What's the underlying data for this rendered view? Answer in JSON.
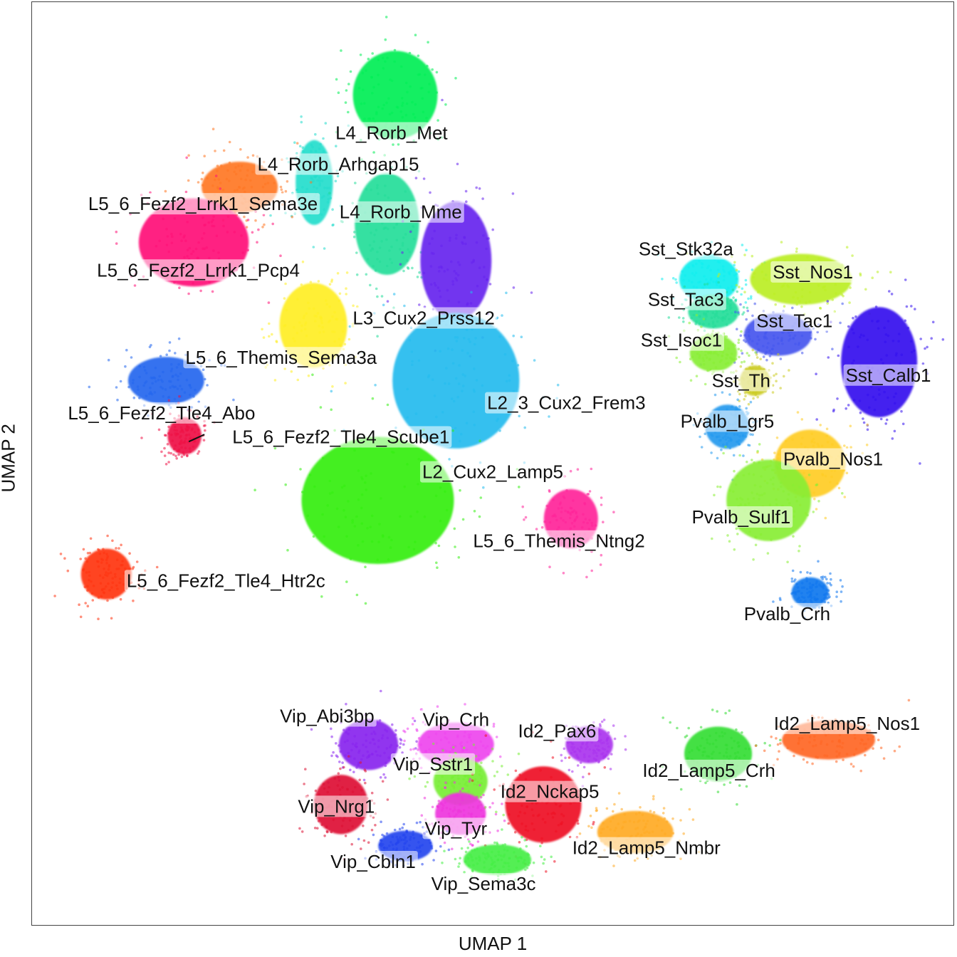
{
  "chart_data": {
    "type": "scatter",
    "title": "",
    "xlabel": "UMAP 1",
    "ylabel": "UMAP 2",
    "xlim": [
      0,
      100
    ],
    "ylim": [
      0,
      100
    ],
    "grid": false,
    "legend": "none",
    "clusters": [
      {
        "name": "L4_Rorb_Met",
        "color": "#00ee55",
        "cx": 39.4,
        "cy": 90.0,
        "rx": 5.0,
        "ry": 5.2,
        "lx": 39.0,
        "ly": 85.9
      },
      {
        "name": "L4_Rorb_Arhgap15",
        "color": "#22ddcc",
        "cx": 30.6,
        "cy": 80.5,
        "rx": 2.2,
        "ry": 5.0,
        "lx": 33.2,
        "ly": 82.5
      },
      {
        "name": "L5_6_Fezf2_Lrrk1_Sema3e",
        "color": "#ff7722",
        "cx": 22.5,
        "cy": 80.0,
        "rx": 4.5,
        "ry": 3.0,
        "lx": 18.5,
        "ly": 78.2
      },
      {
        "name": "L4_Rorb_Mme",
        "color": "#22dd99",
        "cx": 38.5,
        "cy": 76.0,
        "rx": 3.8,
        "ry": 6.0,
        "lx": 40.0,
        "ly": 77.3
      },
      {
        "name": "L3_Cux2_Prss12",
        "color": "#6622ee",
        "cx": 46.0,
        "cy": 72.0,
        "rx": 4.2,
        "ry": 7.0,
        "lx": 42.5,
        "ly": 65.8
      },
      {
        "name": "L5_6_Fezf2_Lrrk1_Pcp4",
        "color": "#ff1177",
        "cx": 17.5,
        "cy": 74.0,
        "rx": 6.5,
        "ry": 5.2,
        "lx": 18.0,
        "ly": 71.0
      },
      {
        "name": "L2_3_Cux2_Frem3",
        "color": "#22bbee",
        "cx": 46.0,
        "cy": 59.0,
        "rx": 7.5,
        "ry": 8.0,
        "lx": 58.0,
        "ly": 56.6
      },
      {
        "name": "L5_6_Themis_Sema3a",
        "color": "#ffee22",
        "cx": 30.5,
        "cy": 65.0,
        "rx": 4.0,
        "ry": 5.0,
        "lx": 27.0,
        "ly": 61.5
      },
      {
        "name": "L5_6_Fezf2_Tle4_Abo",
        "color": "#2266ee",
        "cx": 14.5,
        "cy": 59.0,
        "rx": 4.5,
        "ry": 2.8,
        "lx": 14.0,
        "ly": 55.5
      },
      {
        "name": "L5_6_Fezf2_Tle4_Scube1",
        "color": "#ee1144",
        "cx": 16.5,
        "cy": 53.0,
        "rx": 2.0,
        "ry": 2.2,
        "lx": 33.5,
        "ly": 52.9
      },
      {
        "name": "L2_Cux2_Lamp5",
        "color": "#33ee11",
        "cx": 37.5,
        "cy": 46.0,
        "rx": 9.0,
        "ry": 7.5,
        "lx": 50.0,
        "ly": 49.1
      },
      {
        "name": "L5_6_Themis_Ntng2",
        "color": "#ff2299",
        "cx": 58.5,
        "cy": 44.0,
        "rx": 3.2,
        "ry": 3.5,
        "lx": 57.2,
        "ly": 41.6
      },
      {
        "name": "L5_6_Fezf2_Tle4_Htr2c",
        "color": "#ff3311",
        "cx": 8.0,
        "cy": 38.0,
        "rx": 3.0,
        "ry": 3.0,
        "lx": 21.0,
        "ly": 37.3
      },
      {
        "name": "Sst_Stk32a",
        "color": "#11eeee",
        "cx": 73.5,
        "cy": 70.0,
        "rx": 3.5,
        "ry": 2.8,
        "lx": 71.0,
        "ly": 73.3
      },
      {
        "name": "Sst_Nos1",
        "color": "#bbee22",
        "cx": 83.5,
        "cy": 70.0,
        "rx": 6.0,
        "ry": 3.0,
        "lx": 84.8,
        "ly": 70.8
      },
      {
        "name": "Sst_Tac3",
        "color": "#22dd99",
        "cx": 74.0,
        "cy": 66.5,
        "rx": 3.0,
        "ry": 2.0,
        "lx": 71.0,
        "ly": 67.8
      },
      {
        "name": "Sst_Tac1",
        "color": "#4455ee",
        "cx": 81.0,
        "cy": 64.0,
        "rx": 4.0,
        "ry": 2.5,
        "lx": 82.8,
        "ly": 65.5
      },
      {
        "name": "Sst_Isoc1",
        "color": "#88ee33",
        "cx": 74.0,
        "cy": 62.0,
        "rx": 2.8,
        "ry": 2.2,
        "lx": 70.5,
        "ly": 63.4
      },
      {
        "name": "Sst_Calb1",
        "color": "#3311ee",
        "cx": 92.0,
        "cy": 61.0,
        "rx": 4.5,
        "ry": 6.5,
        "lx": 93.0,
        "ly": 59.6
      },
      {
        "name": "Sst_Th",
        "color": "#cccc22",
        "cx": 78.5,
        "cy": 59.0,
        "rx": 1.8,
        "ry": 1.8,
        "lx": 77.0,
        "ly": 59.0
      },
      {
        "name": "Pvalb_Lgr5",
        "color": "#2299ee",
        "cx": 75.5,
        "cy": 54.0,
        "rx": 2.6,
        "ry": 2.6,
        "lx": 75.5,
        "ly": 54.6
      },
      {
        "name": "Pvalb_Nos1",
        "color": "#ffcc22",
        "cx": 84.5,
        "cy": 50.0,
        "rx": 4.2,
        "ry": 4.0,
        "lx": 87.0,
        "ly": 50.5
      },
      {
        "name": "Pvalb_Sulf1",
        "color": "#88ee33",
        "cx": 80.0,
        "cy": 46.0,
        "rx": 5.0,
        "ry": 4.8,
        "lx": 77.0,
        "ly": 44.2
      },
      {
        "name": "Pvalb_Crh",
        "color": "#1177ee",
        "cx": 84.5,
        "cy": 36.0,
        "rx": 2.2,
        "ry": 1.8,
        "lx": 82.0,
        "ly": 33.7
      },
      {
        "name": "Vip_Abi3bp",
        "color": "#8822ee",
        "cx": 36.5,
        "cy": 19.5,
        "rx": 3.5,
        "ry": 3.0,
        "lx": 32.0,
        "ly": 22.6
      },
      {
        "name": "Vip_Crh",
        "color": "#ee44ee",
        "cx": 46.0,
        "cy": 19.5,
        "rx": 4.5,
        "ry": 2.6,
        "lx": 46.0,
        "ly": 22.2
      },
      {
        "name": "Id2_Pax6",
        "color": "#aa33ee",
        "cx": 60.5,
        "cy": 19.5,
        "rx": 2.8,
        "ry": 2.2,
        "lx": 57.0,
        "ly": 21.0
      },
      {
        "name": "Vip_Sstr1",
        "color": "#77ee33",
        "cx": 46.5,
        "cy": 15.5,
        "rx": 3.2,
        "ry": 2.8,
        "lx": 43.5,
        "ly": 17.4
      },
      {
        "name": "Id2_Lamp5_Crh",
        "color": "#33dd33",
        "cx": 74.5,
        "cy": 18.5,
        "rx": 4.0,
        "ry": 3.2,
        "lx": 73.5,
        "ly": 16.7
      },
      {
        "name": "Id2_Lamp5_Nos1",
        "color": "#ff6622",
        "cx": 86.5,
        "cy": 20.0,
        "rx": 5.5,
        "ry": 2.3,
        "lx": 88.5,
        "ly": 21.8
      },
      {
        "name": "Id2_Nckap5",
        "color": "#ee1122",
        "cx": 55.5,
        "cy": 13.0,
        "rx": 4.5,
        "ry": 4.5,
        "lx": 56.2,
        "ly": 14.4
      },
      {
        "name": "Vip_Nrg1",
        "color": "#dd1133",
        "cx": 33.5,
        "cy": 13.0,
        "rx": 3.2,
        "ry": 3.5,
        "lx": 33.0,
        "ly": 12.8
      },
      {
        "name": "Vip_Tyr",
        "color": "#ee33dd",
        "cx": 46.5,
        "cy": 12.0,
        "rx": 3.0,
        "ry": 2.5,
        "lx": 46.0,
        "ly": 10.4
      },
      {
        "name": "Vip_Cbln1",
        "color": "#2244ee",
        "cx": 40.5,
        "cy": 8.5,
        "rx": 3.2,
        "ry": 1.8,
        "lx": 37.0,
        "ly": 6.8
      },
      {
        "name": "Id2_Lamp5_Nmbr",
        "color": "#ffaa22",
        "cx": 65.5,
        "cy": 10.0,
        "rx": 4.5,
        "ry": 2.5,
        "lx": 66.7,
        "ly": 8.3
      },
      {
        "name": "Vip_Sema3c",
        "color": "#44ee44",
        "cx": 50.5,
        "cy": 7.0,
        "rx": 4.0,
        "ry": 1.8,
        "lx": 49.0,
        "ly": 4.4
      }
    ]
  }
}
